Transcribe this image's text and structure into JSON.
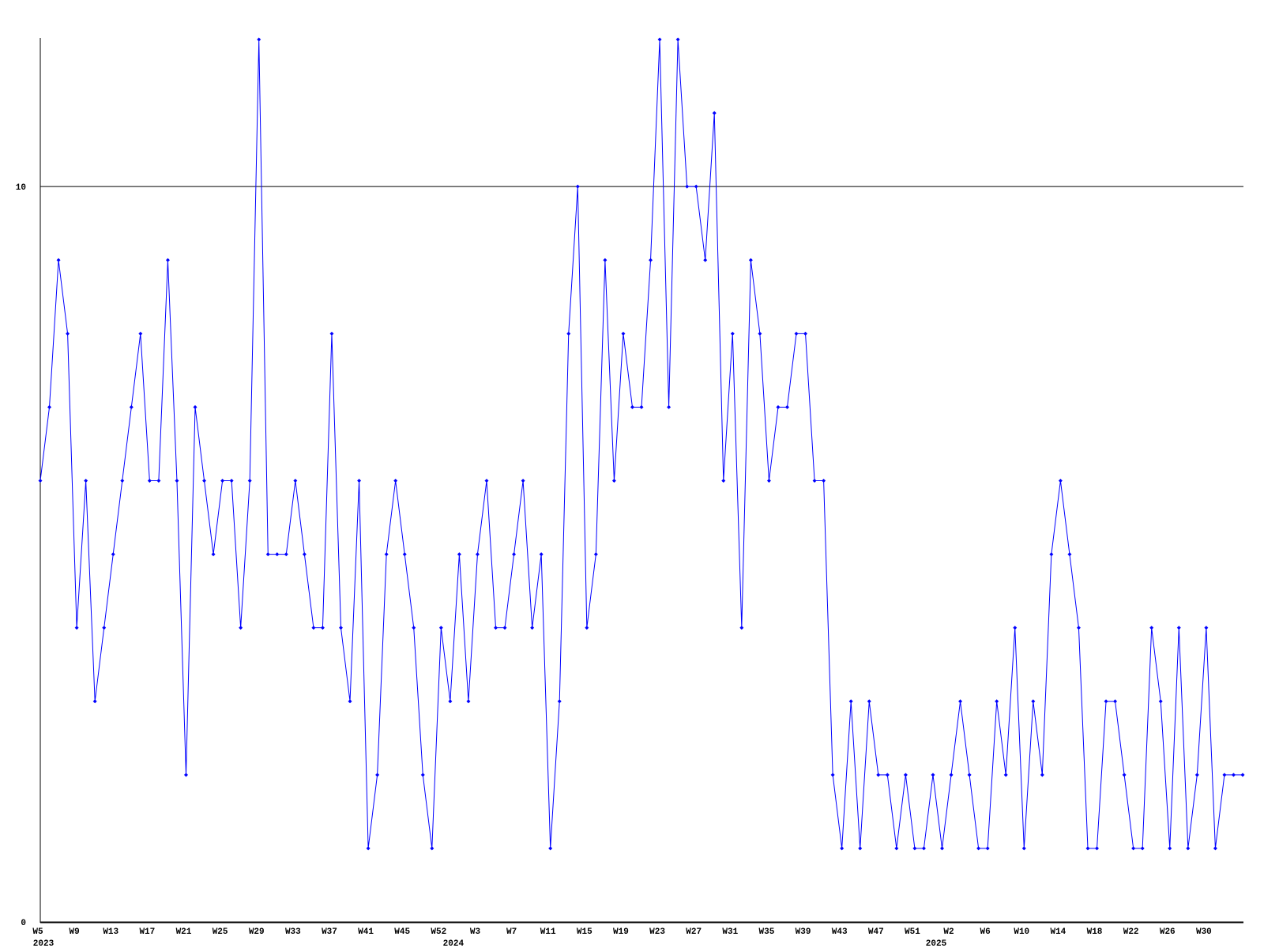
{
  "chart_data": {
    "type": "line",
    "categories": [
      "W5",
      null,
      null,
      null,
      "W9",
      null,
      null,
      null,
      "W13",
      null,
      null,
      null,
      "W17",
      null,
      null,
      null,
      "W21",
      null,
      null,
      null,
      "W25",
      null,
      null,
      null,
      "W29",
      null,
      null,
      null,
      "W33",
      null,
      null,
      null,
      "W37",
      null,
      null,
      null,
      "W41",
      null,
      null,
      null,
      "W45",
      null,
      null,
      null,
      "W52",
      null,
      null,
      null,
      "W3",
      null,
      null,
      null,
      "W7",
      null,
      null,
      null,
      "W11",
      null,
      null,
      null,
      "W15",
      null,
      null,
      null,
      "W19",
      null,
      null,
      null,
      "W23",
      null,
      null,
      null,
      "W27",
      null,
      null,
      null,
      "W31",
      null,
      null,
      null,
      "W35",
      null,
      null,
      null,
      "W39",
      null,
      null,
      null,
      "W43",
      null,
      null,
      null,
      "W47",
      null,
      null,
      null,
      "W51",
      null,
      null,
      null,
      "W2",
      null,
      null,
      null,
      "W6",
      null,
      null,
      null,
      "W10",
      null,
      null,
      null,
      "W14",
      null,
      null,
      null,
      "W18",
      null,
      null,
      null,
      "W22",
      null,
      null,
      null,
      "W26",
      null,
      null,
      null,
      "W30",
      null,
      null,
      null,
      null
    ],
    "year_labels": [
      {
        "label": "2023",
        "index": 0
      },
      {
        "label": "2024",
        "index": 45
      },
      {
        "label": "2025",
        "index": 98
      }
    ],
    "values": [
      6,
      7,
      9,
      8,
      4,
      6,
      3,
      4,
      5,
      6,
      7,
      8,
      6,
      6,
      9,
      6,
      2,
      7,
      6,
      5,
      6,
      6,
      4,
      6,
      12,
      5,
      5,
      5,
      6,
      5,
      4,
      4,
      8,
      4,
      3,
      6,
      1,
      2,
      5,
      6,
      5,
      4,
      2,
      1,
      4,
      3,
      5,
      3,
      5,
      6,
      4,
      4,
      5,
      6,
      4,
      5,
      1,
      3,
      8,
      10,
      4,
      5,
      9,
      6,
      8,
      7,
      7,
      9,
      12,
      7,
      12,
      10,
      10,
      9,
      11,
      6,
      8,
      4,
      9,
      8,
      6,
      7,
      7,
      8,
      8,
      6,
      6,
      2,
      1,
      3,
      1,
      3,
      2,
      2,
      1,
      2,
      1,
      1,
      2,
      1,
      2,
      3,
      2,
      1,
      1,
      3,
      2,
      4,
      1,
      3,
      2,
      5,
      6,
      5,
      4,
      1,
      1,
      3,
      3,
      2,
      1,
      1,
      4,
      3,
      1,
      4,
      1,
      2,
      4,
      1,
      2,
      2,
      2
    ],
    "color": "#0000ff",
    "ylim": [
      0,
      12
    ],
    "yticks": [
      0,
      10
    ],
    "grid": true
  }
}
